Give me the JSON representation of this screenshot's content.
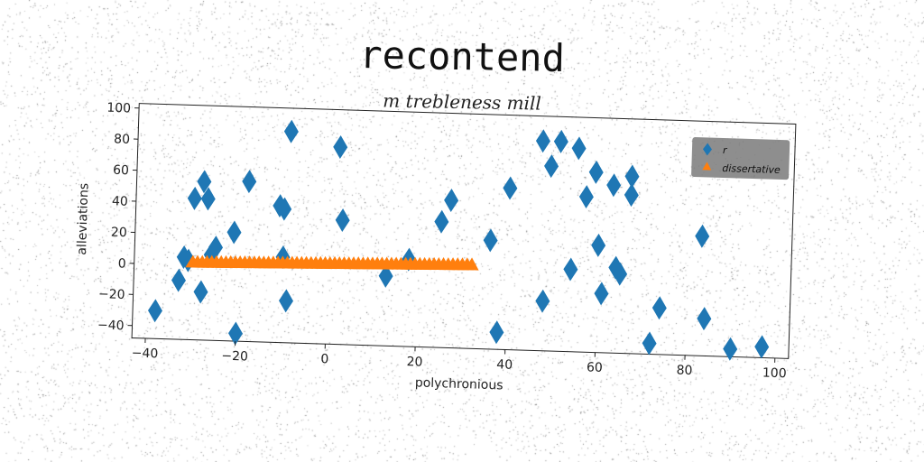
{
  "header": {
    "title": "recontend",
    "subtitle": "m trebleness mill"
  },
  "chart_data": {
    "type": "scatter",
    "title": "m trebleness mill",
    "xlabel": "polychronious",
    "ylabel": "alleviations",
    "xlim": [
      -43,
      103
    ],
    "ylim": [
      -48,
      103
    ],
    "xticks": [
      "−40",
      "−20",
      "0",
      "20",
      "40",
      "60",
      "80",
      "100"
    ],
    "yticks": [
      "100",
      "80",
      "60",
      "40",
      "20",
      "0",
      "−20",
      "−40"
    ],
    "legend_position": "top-right",
    "grid": false,
    "series": [
      {
        "name": "r",
        "marker": "diamond",
        "color": "#1f77b4",
        "x": [
          -38,
          -33,
          -32,
          -31,
          -30,
          -28,
          -28,
          -27,
          -26,
          -25,
          -21,
          -20,
          -18,
          -11,
          -10,
          -10,
          -9,
          -9,
          2,
          3,
          13,
          18,
          25,
          27,
          36,
          38,
          40,
          47,
          48,
          49,
          51,
          54,
          55,
          57,
          59,
          60,
          61,
          63,
          64,
          65,
          67,
          67,
          72,
          74,
          83,
          84,
          90,
          97
        ],
        "y": [
          -30,
          -10,
          5,
          3,
          43,
          54,
          -17,
          43,
          7,
          12,
          22,
          -43,
          55,
          40,
          38,
          7,
          88,
          -21,
          79,
          32,
          -3,
          8,
          33,
          47,
          22,
          -37,
          56,
          87,
          -16,
          71,
          87,
          5,
          83,
          52,
          68,
          21,
          -10,
          60,
          7,
          3,
          54,
          66,
          -41,
          -18,
          29,
          -24,
          -43,
          -41
        ]
      },
      {
        "name": "dissertative",
        "marker": "triangle",
        "color": "#ff7f0e",
        "line": {
          "x_start": -30,
          "x_end": 32,
          "y_start": 2,
          "y_end": 6,
          "count": 60
        }
      }
    ]
  }
}
